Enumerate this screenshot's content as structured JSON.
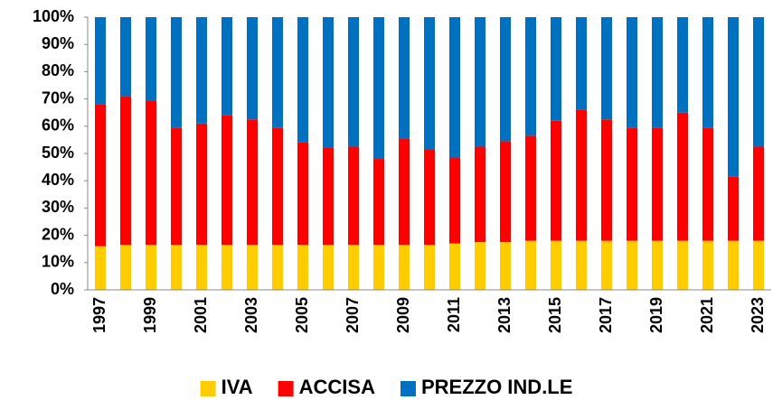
{
  "chart_data": {
    "type": "stacked_bar_100",
    "categories": [
      "1997",
      null,
      "1999",
      null,
      "2001",
      null,
      "2003",
      null,
      "2005",
      null,
      "2007",
      null,
      "2009",
      null,
      "2011",
      null,
      "2013",
      null,
      "2015",
      null,
      "2017",
      null,
      "2019",
      null,
      "2021",
      null,
      "2023"
    ],
    "series": [
      {
        "name": "IVA",
        "color": "#ffcc00",
        "values": [
          16,
          16.5,
          16.5,
          16.5,
          16.5,
          16.5,
          16.5,
          16.5,
          16.5,
          16.5,
          16.5,
          16.5,
          16.5,
          16.5,
          17,
          17.5,
          17.5,
          18,
          18,
          18,
          18,
          18,
          18,
          18,
          18,
          18,
          18
        ]
      },
      {
        "name": "ACCISA",
        "color": "#ff0000",
        "values": [
          52,
          54.5,
          53,
          43,
          44.5,
          47.5,
          46,
          43,
          37.5,
          35.5,
          36,
          31.5,
          39,
          35,
          31.5,
          35,
          37,
          38.5,
          44,
          48,
          44.5,
          41.5,
          41.5,
          47,
          41.5,
          23.5,
          34.5
        ]
      },
      {
        "name": "PREZZO IND.LE",
        "color": "#0070c0",
        "values": [
          32,
          29,
          30.5,
          40.5,
          39,
          36,
          37.5,
          40.5,
          46,
          48,
          47.5,
          52,
          44.5,
          48.5,
          51.5,
          47.5,
          45.5,
          43.5,
          38,
          34,
          37.5,
          40.5,
          40.5,
          35,
          40.5,
          58.5,
          47.5
        ]
      }
    ],
    "ylim": [
      0,
      100
    ],
    "yticks": [
      {
        "value": 0,
        "label": "0%"
      },
      {
        "value": 10,
        "label": "10%"
      },
      {
        "value": 20,
        "label": "20%"
      },
      {
        "value": 30,
        "label": "30%"
      },
      {
        "value": 40,
        "label": "40%"
      },
      {
        "value": 50,
        "label": "50%"
      },
      {
        "value": 60,
        "label": "60%"
      },
      {
        "value": 70,
        "label": "70%"
      },
      {
        "value": 80,
        "label": "80%"
      },
      {
        "value": 90,
        "label": "90%"
      },
      {
        "value": 100,
        "label": "100%"
      }
    ],
    "legend": "bottom"
  }
}
